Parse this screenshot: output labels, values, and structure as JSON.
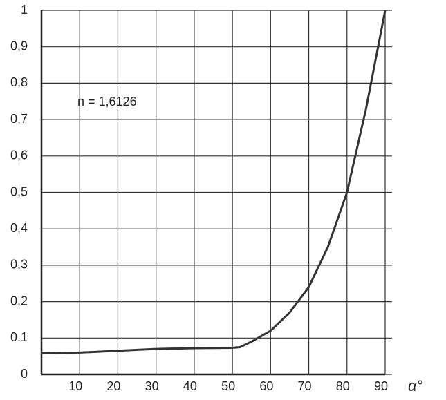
{
  "chart_data": {
    "type": "line",
    "annotation": "n = 1,6126",
    "x_label": "α°",
    "x": [
      0,
      10,
      20,
      30,
      40,
      50,
      52,
      55,
      60,
      65,
      70,
      75,
      80,
      85,
      90
    ],
    "series": [
      {
        "name": "n = 1,6126",
        "color": "#333333",
        "values": [
          0.058,
          0.06,
          0.065,
          0.07,
          0.072,
          0.073,
          0.075,
          0.09,
          0.12,
          0.17,
          0.24,
          0.35,
          0.5,
          0.73,
          1.0
        ]
      }
    ],
    "xlim": [
      0,
      90
    ],
    "xticks": [
      10,
      20,
      30,
      40,
      50,
      60,
      70,
      80,
      90
    ],
    "ylim": [
      0,
      1
    ],
    "yticks": [
      0,
      0.1,
      {
        "value": 0.2,
        "label": "0,2"
      },
      {
        "value": 0.3,
        "label": "0,3"
      },
      {
        "value": 0.4,
        "label": "0,4"
      },
      {
        "value": 0.5,
        "label": "0,5"
      },
      {
        "value": 0.6,
        "label": "0,6"
      },
      {
        "value": 0.7,
        "label": "0,7"
      },
      {
        "value": 0.8,
        "label": "0,8"
      },
      {
        "value": 0.9,
        "label": "0,9"
      },
      1
    ],
    "grid": true
  }
}
